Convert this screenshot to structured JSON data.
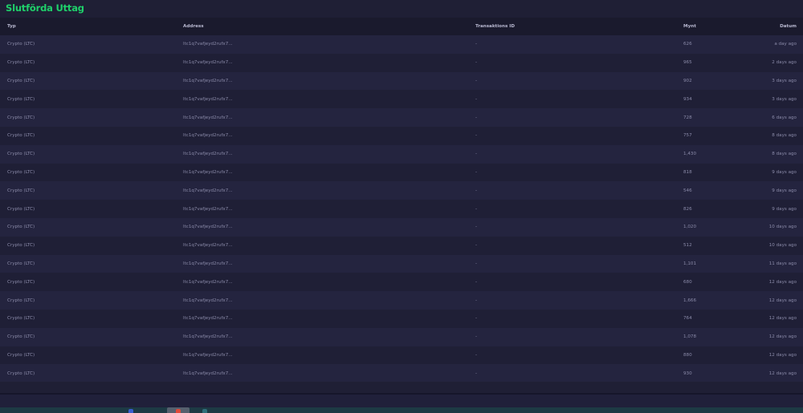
{
  "title": "Slutförda Uttag",
  "columns": {
    "type": "Typ",
    "address": "Address",
    "txid": "Transaktions ID",
    "amount": "Mynt",
    "date": "Datum"
  },
  "rows": [
    {
      "type": "Crypto (LTC)",
      "address": "ltc1q7vafjeyd2rufx7...",
      "txid": "-",
      "amount": "626",
      "date": "a day ago"
    },
    {
      "type": "Crypto (LTC)",
      "address": "ltc1q7vafjeyd2rufx7...",
      "txid": "-",
      "amount": "965",
      "date": "2 days ago"
    },
    {
      "type": "Crypto (LTC)",
      "address": "ltc1q7vafjeyd2rufx7...",
      "txid": "-",
      "amount": "902",
      "date": "3 days ago"
    },
    {
      "type": "Crypto (LTC)",
      "address": "ltc1q7vafjeyd2rufx7...",
      "txid": "-",
      "amount": "934",
      "date": "3 days ago"
    },
    {
      "type": "Crypto (LTC)",
      "address": "ltc1q7vafjeyd2rufx7...",
      "txid": "-",
      "amount": "728",
      "date": "6 days ago"
    },
    {
      "type": "Crypto (LTC)",
      "address": "ltc1q7vafjeyd2rufx7...",
      "txid": "-",
      "amount": "757",
      "date": "8 days ago"
    },
    {
      "type": "Crypto (LTC)",
      "address": "ltc1q7vafjeyd2rufx7...",
      "txid": "-",
      "amount": "1,430",
      "date": "8 days ago"
    },
    {
      "type": "Crypto (LTC)",
      "address": "ltc1q7vafjeyd2rufx7...",
      "txid": "-",
      "amount": "818",
      "date": "9 days ago"
    },
    {
      "type": "Crypto (LTC)",
      "address": "ltc1q7vafjeyd2rufx7...",
      "txid": "-",
      "amount": "546",
      "date": "9 days ago"
    },
    {
      "type": "Crypto (LTC)",
      "address": "ltc1q7vafjeyd2rufx7...",
      "txid": "-",
      "amount": "826",
      "date": "9 days ago"
    },
    {
      "type": "Crypto (LTC)",
      "address": "ltc1q7vafjeyd2rufx7...",
      "txid": "-",
      "amount": "1,020",
      "date": "10 days ago"
    },
    {
      "type": "Crypto (LTC)",
      "address": "ltc1q7vafjeyd2rufx7...",
      "txid": "-",
      "amount": "512",
      "date": "10 days ago"
    },
    {
      "type": "Crypto (LTC)",
      "address": "ltc1q7vafjeyd2rufx7...",
      "txid": "-",
      "amount": "1,101",
      "date": "11 days ago"
    },
    {
      "type": "Crypto (LTC)",
      "address": "ltc1q7vafjeyd2rufx7...",
      "txid": "-",
      "amount": "680",
      "date": "12 days ago"
    },
    {
      "type": "Crypto (LTC)",
      "address": "ltc1q7vafjeyd2rufx7...",
      "txid": "-",
      "amount": "1,666",
      "date": "12 days ago"
    },
    {
      "type": "Crypto (LTC)",
      "address": "ltc1q7vafjeyd2rufx7...",
      "txid": "-",
      "amount": "764",
      "date": "12 days ago"
    },
    {
      "type": "Crypto (LTC)",
      "address": "ltc1q7vafjeyd2rufx7...",
      "txid": "-",
      "amount": "1,078",
      "date": "12 days ago"
    },
    {
      "type": "Crypto (LTC)",
      "address": "ltc1q7vafjeyd2rufx7...",
      "txid": "-",
      "amount": "880",
      "date": "12 days ago"
    },
    {
      "type": "Crypto (LTC)",
      "address": "ltc1q7vafjeyd2rufx7...",
      "txid": "-",
      "amount": "930",
      "date": "12 days ago"
    }
  ],
  "colors": {
    "accent": "#1fd06a",
    "background": "#1f1f35",
    "row_alt": "#24243f"
  }
}
